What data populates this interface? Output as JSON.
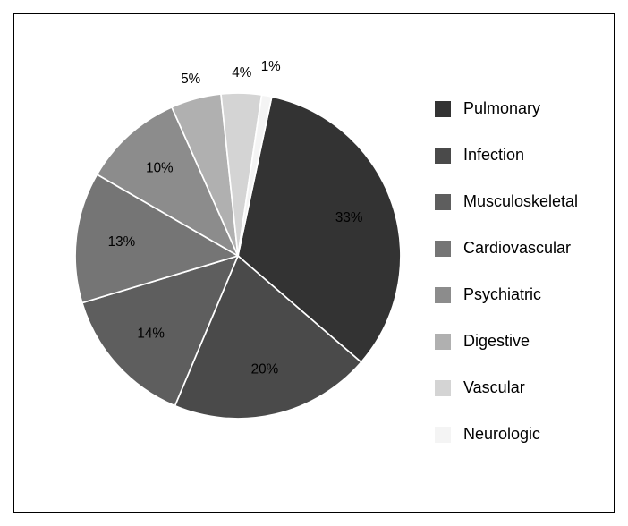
{
  "chart": {
    "type": "pie",
    "background_color": "#ffffff",
    "border_color": "#000000",
    "label_fontsize": 18,
    "label_color": "#000000",
    "slice_stroke": "#ffffff",
    "slice_stroke_width": 2,
    "start_angle_deg": 12,
    "slices": [
      {
        "name": "Pulmonary",
        "value": 33,
        "label": "33%",
        "color": "#333333"
      },
      {
        "name": "Infection",
        "value": 20,
        "label": "20%",
        "color": "#4a4a4a"
      },
      {
        "name": "Musculoskeletal",
        "value": 14,
        "label": "14%",
        "color": "#5e5e5e"
      },
      {
        "name": "Cardiovascular",
        "value": 13,
        "label": "13%",
        "color": "#757575"
      },
      {
        "name": "Psychiatric",
        "value": 10,
        "label": "10%",
        "color": "#8c8c8c"
      },
      {
        "name": "Digestive",
        "value": 5,
        "label": "5%",
        "color": "#b0b0b0"
      },
      {
        "name": "Vascular",
        "value": 4,
        "label": "4%",
        "color": "#d4d4d4"
      },
      {
        "name": "Neurologic",
        "value": 1,
        "label": "1%",
        "color": "#f4f4f4"
      }
    ]
  },
  "legend": {
    "swatch_size": 18,
    "fontsize": 18,
    "text_color": "#000000",
    "items": [
      {
        "label": "Pulmonary",
        "color": "#333333"
      },
      {
        "label": "Infection",
        "color": "#4a4a4a"
      },
      {
        "label": "Musculoskeletal",
        "color": "#5e5e5e"
      },
      {
        "label": "Cardiovascular",
        "color": "#757575"
      },
      {
        "label": "Psychiatric",
        "color": "#8c8c8c"
      },
      {
        "label": "Digestive",
        "color": "#b0b0b0"
      },
      {
        "label": "Vascular",
        "color": "#d4d4d4"
      },
      {
        "label": "Neurologic",
        "color": "#f4f4f4"
      }
    ]
  }
}
